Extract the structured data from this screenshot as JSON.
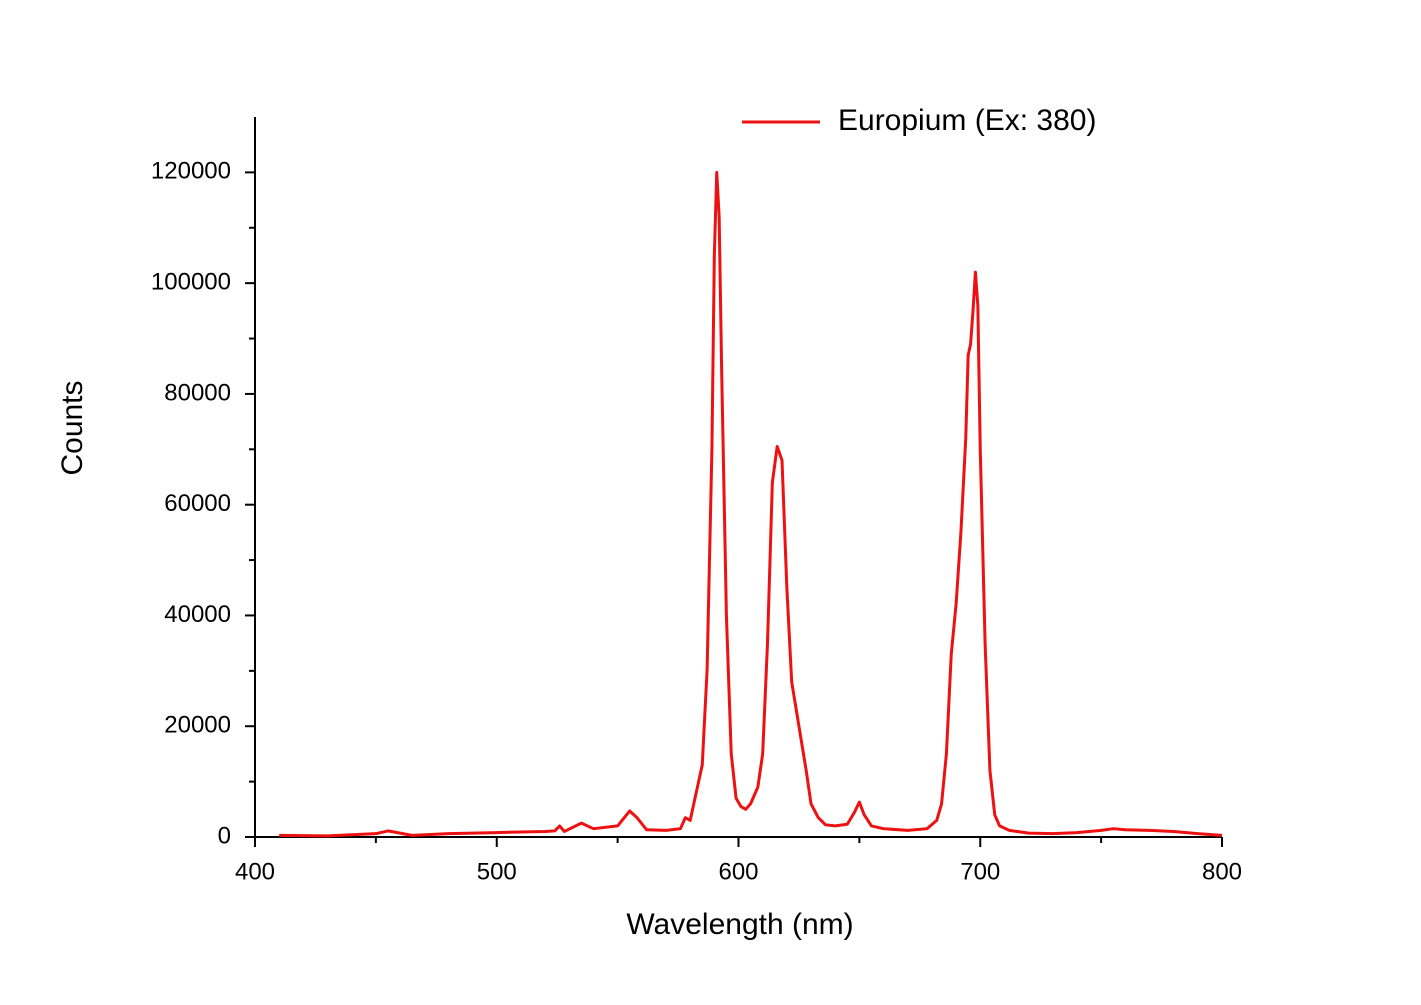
{
  "chart_data": {
    "type": "line",
    "xlabel": "Wavelength (nm)",
    "ylabel": "Counts",
    "xlim": [
      400,
      800
    ],
    "xticks": [
      400,
      500,
      600,
      700,
      800
    ],
    "ylim": [
      0,
      130000
    ],
    "yticks": [
      0,
      20000,
      40000,
      60000,
      80000,
      100000,
      120000
    ],
    "legend": "top-right",
    "x": [
      410,
      430,
      450,
      455,
      460,
      465,
      480,
      500,
      520,
      524,
      526,
      528,
      535,
      540,
      550,
      555,
      558,
      562,
      570,
      576,
      578,
      580,
      583,
      585,
      587,
      589,
      590,
      591,
      592,
      593,
      595,
      597,
      599,
      601,
      603,
      605,
      608,
      610,
      612,
      614,
      616,
      618,
      620,
      622,
      625,
      628,
      630,
      633,
      636,
      640,
      645,
      648,
      650,
      652,
      655,
      660,
      670,
      678,
      682,
      684,
      686,
      688,
      690,
      692,
      694,
      695,
      696,
      697,
      698,
      699,
      700,
      702,
      704,
      706,
      708,
      712,
      720,
      730,
      740,
      750,
      755,
      760,
      770,
      780,
      790,
      800
    ],
    "series": [
      {
        "name": "Europium (Ex: 380)",
        "color": "#ee1111",
        "values": [
          300,
          200,
          600,
          1100,
          700,
          300,
          600,
          800,
          1000,
          1100,
          2000,
          1000,
          2500,
          1500,
          2000,
          4700,
          3500,
          1300,
          1200,
          1500,
          3500,
          3000,
          9000,
          13000,
          30000,
          70000,
          105000,
          120000,
          112000,
          85000,
          40000,
          15000,
          7000,
          5500,
          5000,
          6000,
          9000,
          15000,
          35000,
          64000,
          70500,
          68000,
          45000,
          28000,
          20000,
          12000,
          6000,
          3500,
          2200,
          2000,
          2300,
          4500,
          6300,
          4000,
          2000,
          1500,
          1200,
          1500,
          3000,
          6000,
          15000,
          33000,
          42000,
          55000,
          72000,
          87000,
          89000,
          95000,
          102000,
          96000,
          70000,
          35000,
          12000,
          4000,
          2000,
          1200,
          700,
          600,
          800,
          1200,
          1500,
          1300,
          1200,
          1000,
          600,
          300
        ]
      }
    ]
  }
}
